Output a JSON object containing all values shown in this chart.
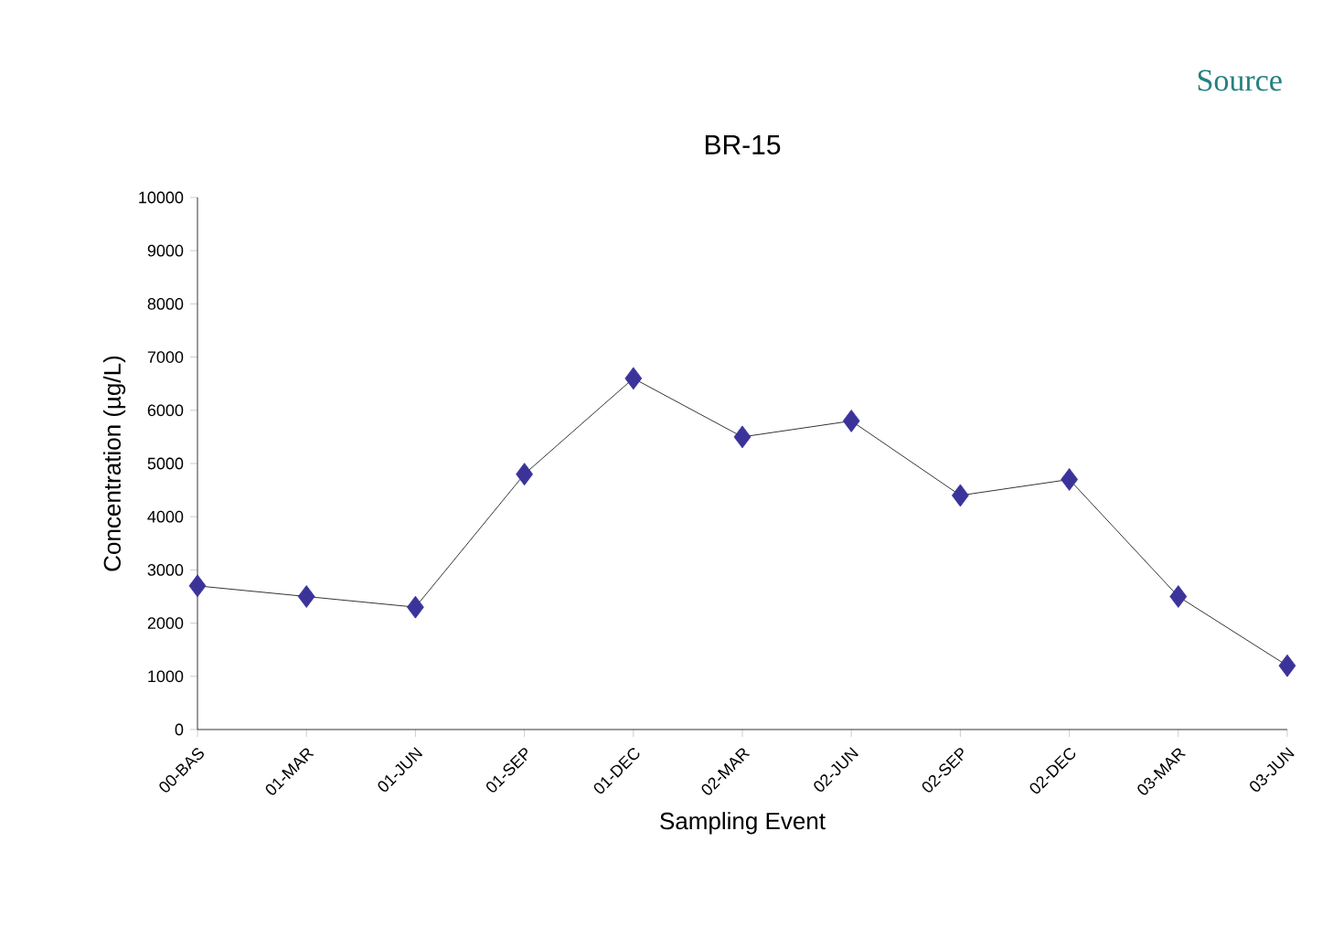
{
  "chart_data": {
    "type": "line",
    "title": "BR-15",
    "xlabel": "Sampling Event",
    "ylabel": "Concentration (µg/L)",
    "annotations": [
      "Source"
    ],
    "categories": [
      "00-BAS",
      "01-MAR",
      "01-JUN",
      "01-SEP",
      "01-DEC",
      "02-MAR",
      "02-JUN",
      "02-SEP",
      "02-DEC",
      "03-MAR",
      "03-JUN"
    ],
    "series": [
      {
        "color": "#3b3399",
        "values": [
          2700,
          2500,
          2300,
          4800,
          6600,
          5500,
          5800,
          4400,
          4700,
          2500,
          1200
        ]
      }
    ],
    "ylim": [
      0,
      10000
    ],
    "yticks": [
      0,
      1000,
      2000,
      3000,
      4000,
      5000,
      6000,
      7000,
      8000,
      9000,
      10000
    ],
    "marker": "diamond",
    "line_style": "solid",
    "grid": false
  }
}
